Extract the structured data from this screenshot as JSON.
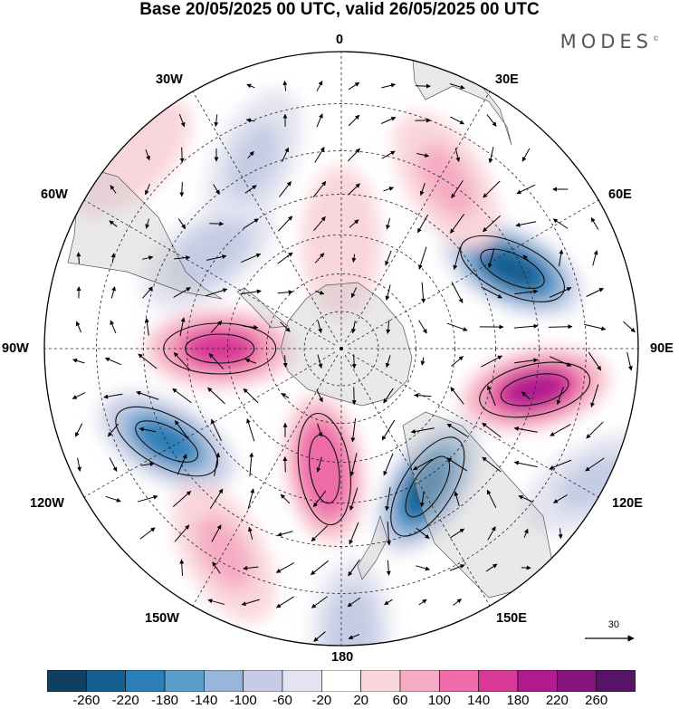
{
  "header": {
    "title": "Base 20/05/2025 00 UTC, valid 26/05/2025 00 UTC",
    "brand": "MODES",
    "brand_mark": "©"
  },
  "map": {
    "projection": "south-polar-stereographic",
    "longitude_labels": {
      "top": "0",
      "top_left": "30W",
      "top_right": "30E",
      "upper_left": "60W",
      "upper_right": "60E",
      "left": "90W",
      "right": "90E",
      "lower_left": "120W",
      "lower_right": "120E",
      "bottom_left": "150W",
      "bottom_right": "150E",
      "bottom": "180"
    },
    "reference_vector_label": "30",
    "anomaly_centers": [
      {
        "name": "negative-30W",
        "lon": -25,
        "lat": -38,
        "value": -80
      },
      {
        "name": "negative-60W",
        "lon": -55,
        "lat": -48,
        "value": -60
      },
      {
        "name": "negative-60E",
        "lon": 65,
        "lat": -42,
        "value": -220
      },
      {
        "name": "negative-150E",
        "lon": 148,
        "lat": -48,
        "value": -220
      },
      {
        "name": "negative-115W",
        "lon": -118,
        "lat": -40,
        "value": -200
      },
      {
        "name": "negative-120E",
        "lon": 118,
        "lat": -22,
        "value": -80
      },
      {
        "name": "negative-180",
        "lon": 178,
        "lat": -22,
        "value": -60
      },
      {
        "name": "positive-90W",
        "lon": -90,
        "lat": -58,
        "value": 160
      },
      {
        "name": "positive-95E",
        "lon": 102,
        "lat": -40,
        "value": 200
      },
      {
        "name": "positive-170W",
        "lon": -172,
        "lat": -58,
        "value": 140
      },
      {
        "name": "positive-40E",
        "lon": 32,
        "lat": -40,
        "value": 80
      },
      {
        "name": "positive-0",
        "lon": 0,
        "lat": -62,
        "value": 60
      },
      {
        "name": "positive-150W",
        "lon": -150,
        "lat": -32,
        "value": 90
      },
      {
        "name": "positive-50W",
        "lon": -48,
        "lat": -22,
        "value": 60
      }
    ]
  },
  "colorbar": {
    "ticks": [
      "-260",
      "-220",
      "-180",
      "-140",
      "-100",
      "-60",
      "-20",
      "20",
      "60",
      "100",
      "140",
      "180",
      "220",
      "260"
    ],
    "colors": [
      "#0f3f63",
      "#135f92",
      "#2b7fb8",
      "#5c9ecb",
      "#97b7da",
      "#c5cce4",
      "#e4e4f1",
      "#ffffff",
      "#f9d6dc",
      "#f5abc2",
      "#ee6aa8",
      "#d83996",
      "#b11b8f",
      "#86137e",
      "#571367"
    ]
  }
}
